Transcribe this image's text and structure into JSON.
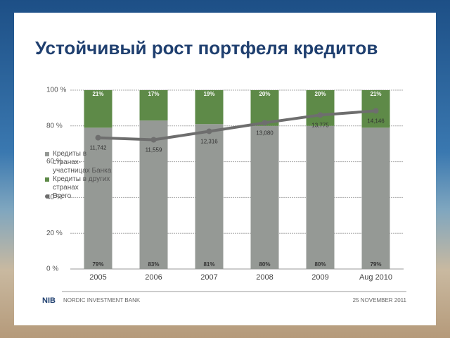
{
  "chart_data": {
    "type": "bar",
    "stacked": true,
    "title": "Устойчивый рост портфеля кредитов",
    "categories": [
      "2005",
      "2006",
      "2007",
      "2008",
      "2009",
      "Aug 2010"
    ],
    "series": [
      {
        "name": "Кредиты в странах-участницах Банка",
        "color": "#959995",
        "values": [
          79,
          83,
          81,
          80,
          80,
          79
        ],
        "value_labels": [
          "79%",
          "83%",
          "81%",
          "80%",
          "80%",
          "79%"
        ]
      },
      {
        "name": "Кредиты в других странах",
        "color": "#5e8a48",
        "values": [
          21,
          17,
          19,
          20,
          20,
          21
        ],
        "value_labels": [
          "21%",
          "17%",
          "19%",
          "20%",
          "20%",
          "21%"
        ]
      },
      {
        "name": "Всего",
        "type": "line",
        "axis": "y2",
        "color": "#6e6e6e",
        "values": [
          11742,
          11559,
          12316,
          13080,
          13775,
          14146
        ],
        "value_labels": [
          "11,742",
          "11,559",
          "12,316",
          "13,080",
          "13,775",
          "14,146"
        ]
      }
    ],
    "ylim": [
      0,
      100
    ],
    "yticks": [
      {
        "value": 0,
        "label": "0 %"
      },
      {
        "value": 20,
        "label": "20 %"
      },
      {
        "value": 40,
        "label": "40 %"
      },
      {
        "value": 60,
        "label": "60 %"
      },
      {
        "value": 80,
        "label": "80 %"
      },
      {
        "value": 100,
        "label": "100 %"
      }
    ],
    "y2lim": [
      0,
      16000
    ],
    "grid": true
  },
  "footer": {
    "logo": "NIB",
    "organization": "NORDIC INVESTMENT BANK",
    "date": "25 NOVEMBER 2011"
  }
}
